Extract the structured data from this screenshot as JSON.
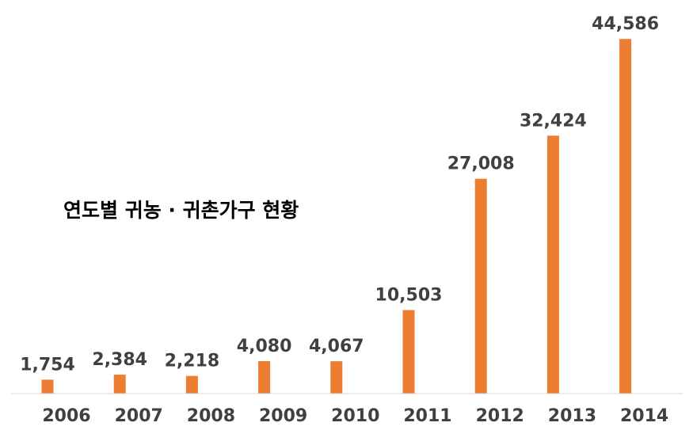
{
  "chart_data": {
    "type": "bar",
    "title": "연도별 귀농 · 귀촌가구 현황",
    "categories": [
      "2006",
      "2007",
      "2008",
      "2009",
      "2010",
      "2011",
      "2012",
      "2013",
      "2014"
    ],
    "values": [
      1754,
      2384,
      2218,
      4080,
      4067,
      10503,
      27008,
      32424,
      44586
    ],
    "value_labels": [
      "1,754",
      "2,384",
      "2,218",
      "4,080",
      "4,067",
      "10,503",
      "27,008",
      "32,424",
      "44,586"
    ],
    "ylim": [
      0,
      45000
    ],
    "grid": false,
    "legend": "none",
    "bar_color": "#ED7D31"
  }
}
